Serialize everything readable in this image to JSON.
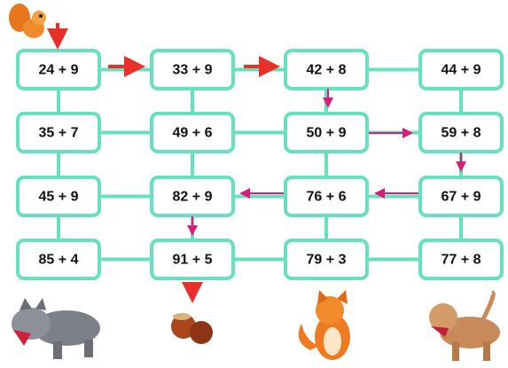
{
  "grid": {
    "rows": [
      [
        "24 + 9",
        "33 + 9",
        "42 + 8",
        "44 + 9"
      ],
      [
        "35 + 7",
        "49 + 6",
        "50 + 9",
        "59 + 8"
      ],
      [
        "45 + 9",
        "82 + 9",
        "76 + 6",
        "67 + 9"
      ],
      [
        "85 + 4",
        "91 + 5",
        "79 + 3",
        "77 + 8"
      ]
    ]
  }
}
